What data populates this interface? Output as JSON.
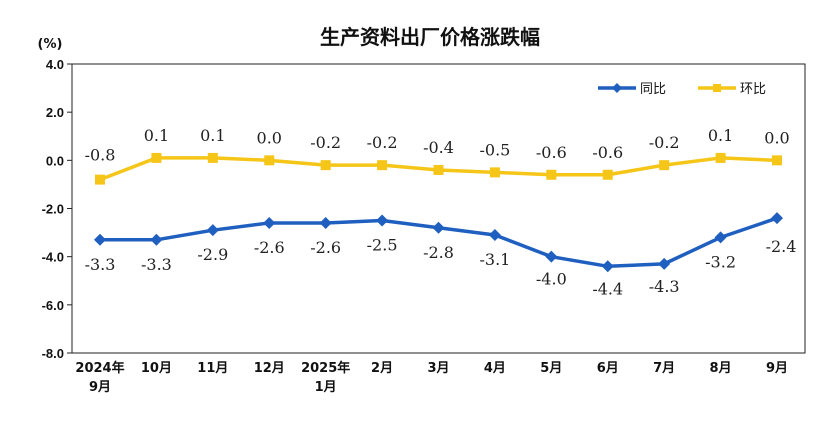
{
  "chart_data": {
    "type": "line",
    "title": "生产资料出厂价格涨跌幅",
    "unit_label": "(%)",
    "ylim": [
      -8.0,
      4.0
    ],
    "yticks": [
      "4.0",
      "2.0",
      "0.0",
      "-2.0",
      "-4.0",
      "-6.0",
      "-8.0"
    ],
    "categories": [
      [
        "2024年",
        "9月"
      ],
      [
        "10月"
      ],
      [
        "11月"
      ],
      [
        "12月"
      ],
      [
        "2025年",
        "1月"
      ],
      [
        "2月"
      ],
      [
        "3月"
      ],
      [
        "4月"
      ],
      [
        "5月"
      ],
      [
        "6月"
      ],
      [
        "7月"
      ],
      [
        "8月"
      ],
      [
        "9月"
      ]
    ],
    "series": [
      {
        "name": "同比",
        "color": "#1f5fbf",
        "marker": "diamond",
        "values": [
          -3.3,
          -3.3,
          -2.9,
          -2.6,
          -2.6,
          -2.5,
          -2.8,
          -3.1,
          -4.0,
          -4.4,
          -4.3,
          -3.2,
          -2.4
        ],
        "labels": [
          "-3.3",
          "-3.3",
          "-2.9",
          "-2.6",
          "-2.6",
          "-2.5",
          "-2.8",
          "-3.1",
          "-4.0",
          "-4.4",
          "-4.3",
          "-3.2",
          "-2.4"
        ]
      },
      {
        "name": "环比",
        "color": "#f5c518",
        "marker": "square",
        "values": [
          -0.8,
          0.1,
          0.1,
          0.0,
          -0.2,
          -0.2,
          -0.4,
          -0.5,
          -0.6,
          -0.6,
          -0.2,
          0.1,
          0.0
        ],
        "labels": [
          "-0.8",
          "0.1",
          "0.1",
          "0.0",
          "-0.2",
          "-0.2",
          "-0.4",
          "-0.5",
          "-0.6",
          "-0.6",
          "-0.2",
          "0.1",
          "0.0"
        ]
      }
    ],
    "legend_position": "top-right",
    "grid": false
  }
}
